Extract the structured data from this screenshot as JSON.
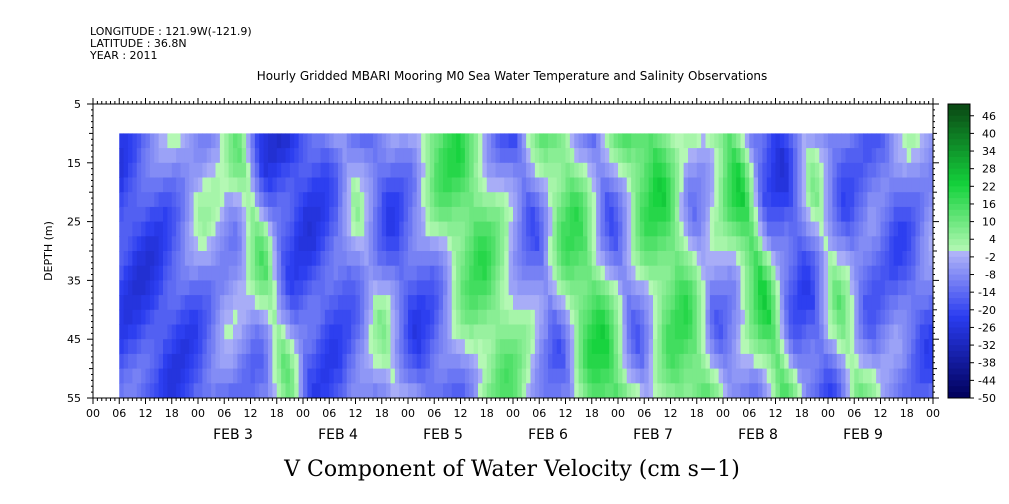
{
  "header": {
    "longitude": "LONGITUDE : 121.9W(-121.9)",
    "latitude": "LATITUDE : 36.8N",
    "year": "YEAR : 2011"
  },
  "chart_data": {
    "type": "heatmap",
    "title": "Hourly Gridded MBARI Mooring M0 Sea Water Temperature and Salinity Observations",
    "xlabel": "V Component of Water Velocity (cm s−1)",
    "ylabel": "DEPTH (m)",
    "y_range": [
      5,
      55
    ],
    "y_inverted": true,
    "y_ticks": [
      5,
      15,
      25,
      35,
      45,
      55
    ],
    "data_depth_range": [
      10,
      55
    ],
    "x_start": "2011-02-02 06:00",
    "x_end": "2011-02-09 18:00",
    "x_axis_start": "2011-02-02 00:00",
    "x_axis_end": "2011-02-10 00:00",
    "x_hour_ticks": [
      "00",
      "06",
      "12",
      "18",
      "00",
      "06",
      "12",
      "18",
      "00",
      "06",
      "12",
      "18",
      "00",
      "06",
      "12",
      "18",
      "00",
      "06",
      "12",
      "18",
      "00",
      "06",
      "12",
      "18",
      "00",
      "06",
      "12",
      "18",
      "00",
      "06",
      "12",
      "18",
      "00"
    ],
    "day_labels": [
      "FEB  3",
      "FEB  4",
      "FEB  5",
      "FEB  6",
      "FEB  7",
      "FEB  8",
      "FEB  9"
    ],
    "colorbar": {
      "min": -50,
      "max": 50,
      "step": 2,
      "labels": [
        "46",
        "40",
        "34",
        "28",
        "22",
        "16",
        "10",
        "4",
        "-2",
        "-8",
        "-14",
        "-20",
        "-26",
        "-32",
        "-38",
        "-44",
        "-50"
      ],
      "negative_color_low": "#00005a",
      "negative_color_mid": "#2a3cf0",
      "negative_color_high": "#b4b8f8",
      "positive_color_low": "#b4f8b4",
      "positive_color_mid": "#14d23c",
      "positive_color_high": "#0a4614"
    },
    "band_speeds": [
      {
        "day_offset": 0.0,
        "v": -18
      },
      {
        "day_offset": 0.3,
        "v": -14
      },
      {
        "day_offset": 0.6,
        "v": -4
      },
      {
        "day_offset": 0.9,
        "v": -10
      },
      {
        "day_offset": 1.1,
        "v": 6
      },
      {
        "day_offset": 1.3,
        "v": -20
      },
      {
        "day_offset": 1.6,
        "v": -22
      },
      {
        "day_offset": 1.9,
        "v": -12
      },
      {
        "day_offset": 2.1,
        "v": 4
      },
      {
        "day_offset": 2.4,
        "v": -16
      },
      {
        "day_offset": 2.7,
        "v": -8
      },
      {
        "day_offset": 2.95,
        "v": 8
      },
      {
        "day_offset": 3.2,
        "v": 12
      },
      {
        "day_offset": 3.5,
        "v": -6
      },
      {
        "day_offset": 3.75,
        "v": -18
      },
      {
        "day_offset": 4.0,
        "v": 10
      },
      {
        "day_offset": 4.2,
        "v": 16
      },
      {
        "day_offset": 4.5,
        "v": -12
      },
      {
        "day_offset": 4.8,
        "v": 14
      },
      {
        "day_offset": 5.05,
        "v": 18
      },
      {
        "day_offset": 5.3,
        "v": -10
      },
      {
        "day_offset": 5.55,
        "v": -4
      },
      {
        "day_offset": 5.8,
        "v": 16
      },
      {
        "day_offset": 6.0,
        "v": -16
      },
      {
        "day_offset": 6.25,
        "v": -22
      },
      {
        "day_offset": 6.5,
        "v": 6
      },
      {
        "day_offset": 6.75,
        "v": -12
      },
      {
        "day_offset": 7.0,
        "v": -8
      },
      {
        "day_offset": 7.25,
        "v": -14
      },
      {
        "day_offset": 7.5,
        "v": -6
      }
    ]
  }
}
